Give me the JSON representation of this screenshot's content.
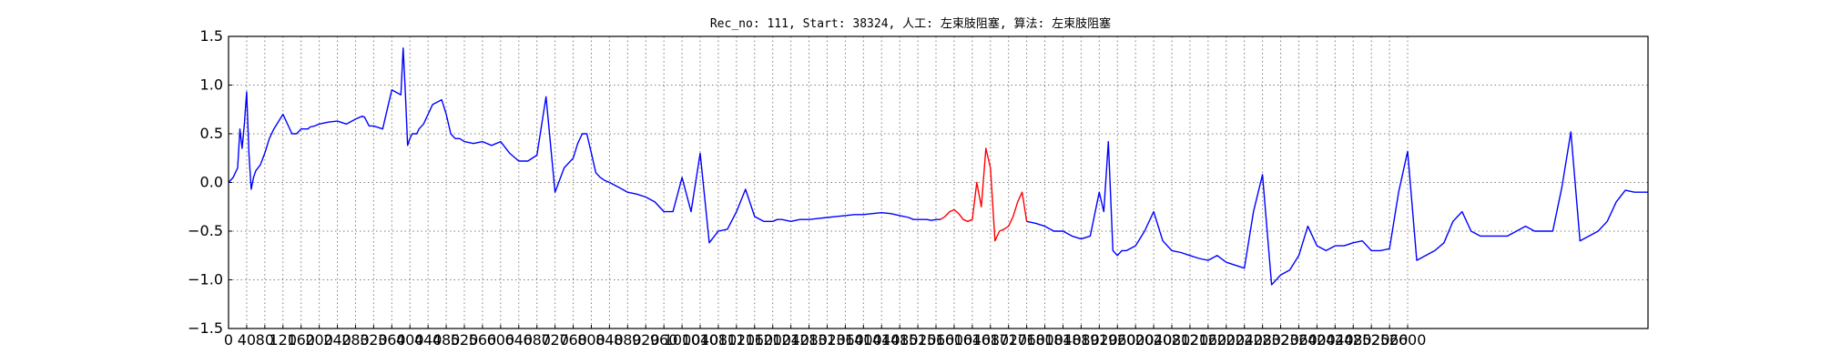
{
  "chart_data": {
    "type": "line",
    "title": "Rec_no: 111, Start: 38324, 人工: 左束肢阻塞, 算法: 左束肢阻塞",
    "xlabel": "",
    "ylabel": "",
    "xlim": [
      0,
      3130
    ],
    "ylim": [
      -1.5,
      1.5
    ],
    "grid": true,
    "x_ticks": [
      0,
      40,
      80,
      120,
      160,
      200,
      240,
      280,
      320,
      360,
      400,
      440,
      480,
      520,
      560,
      600,
      640,
      680,
      720,
      760,
      800,
      840,
      880,
      920,
      960,
      1000,
      1040,
      1080,
      1120,
      1160,
      1200,
      1240,
      1280,
      1320,
      1360,
      1400,
      1440,
      1480,
      1520,
      1560,
      1600,
      1640,
      1680,
      1720,
      1760,
      1800,
      1840,
      1880,
      1920,
      1960,
      2000,
      2040,
      2080,
      2120,
      2160,
      2200,
      2240,
      2280,
      2320,
      2360,
      2400,
      2440,
      2480,
      2520,
      2560,
      2600
    ],
    "y_ticks": [
      1.5,
      1.0,
      0.5,
      0.0,
      -0.5,
      -1.0,
      -1.5
    ],
    "y_tick_labels": [
      "1.5",
      "1.0",
      "0.5",
      "0.0",
      "−0.5",
      "−1.0",
      "−1.5"
    ],
    "series": [
      {
        "color": "#0000ff",
        "x": [
          0,
          10,
          20,
          25,
          30,
          35,
          40,
          45,
          50,
          55,
          60,
          70,
          80,
          90,
          100,
          120,
          140,
          150,
          160,
          170,
          175,
          180,
          190,
          200,
          220,
          240,
          260,
          280,
          295,
          300,
          310,
          320,
          340,
          360,
          380,
          385,
          390,
          395,
          400,
          405,
          410,
          415,
          420,
          430,
          450,
          470,
          480,
          490,
          500,
          510,
          520,
          540,
          560,
          580,
          600,
          620,
          640,
          660,
          680,
          700,
          700,
          720,
          740,
          760,
          770,
          780,
          790,
          800,
          810,
          820,
          830,
          840,
          860,
          880,
          900,
          920,
          940,
          960,
          980,
          1000,
          1020,
          1040,
          1060,
          1080,
          1100,
          1120,
          1140,
          1160,
          1180,
          1190,
          1200,
          1210,
          1220,
          1240,
          1260,
          1280,
          1300,
          1320,
          1340,
          1360,
          1380,
          1400,
          1420,
          1440,
          1460,
          1480,
          1500,
          1510,
          1520,
          1530,
          1540,
          1550,
          1560,
          1570
        ],
        "y": [
          0.0,
          0.05,
          0.15,
          0.55,
          0.35,
          0.6,
          0.93,
          0.3,
          -0.07,
          0.05,
          0.12,
          0.18,
          0.3,
          0.45,
          0.55,
          0.7,
          0.5,
          0.5,
          0.55,
          0.55,
          0.55,
          0.57,
          0.58,
          0.6,
          0.62,
          0.63,
          0.6,
          0.65,
          0.68,
          0.67,
          0.58,
          0.58,
          0.55,
          0.95,
          0.9,
          1.38,
          0.9,
          0.38,
          0.45,
          0.5,
          0.5,
          0.5,
          0.55,
          0.6,
          0.8,
          0.85,
          0.7,
          0.5,
          0.45,
          0.45,
          0.42,
          0.4,
          0.42,
          0.38,
          0.42,
          0.3,
          0.22,
          0.22,
          0.28,
          0.88,
          0.88,
          -0.1,
          0.15,
          0.25,
          0.4,
          0.5,
          0.5,
          0.3,
          0.1,
          0.05,
          0.02,
          0.0,
          -0.05,
          -0.1,
          -0.12,
          -0.15,
          -0.2,
          -0.3,
          -0.3,
          0.05,
          -0.3,
          0.3,
          -0.62,
          -0.5,
          -0.48,
          -0.3,
          -0.07,
          -0.35,
          -0.4,
          -0.4,
          -0.4,
          -0.38,
          -0.38,
          -0.4,
          -0.38,
          -0.38,
          -0.37,
          -0.36,
          -0.35,
          -0.34,
          -0.33,
          -0.33,
          -0.32,
          -0.31,
          -0.32,
          -0.34,
          -0.36,
          -0.38,
          -0.38,
          -0.38,
          -0.38,
          -0.39,
          -0.38,
          -0.38
        ]
      },
      {
        "color": "#ff0000",
        "x": [
          1570,
          1580,
          1590,
          1600,
          1610,
          1620,
          1630,
          1640,
          1650,
          1660,
          1670,
          1680,
          1690,
          1700,
          1710,
          1720,
          1730,
          1740,
          1750,
          1760
        ],
        "y": [
          -0.38,
          -0.35,
          -0.3,
          -0.28,
          -0.32,
          -0.38,
          -0.4,
          -0.38,
          0.0,
          -0.25,
          0.35,
          0.15,
          -0.6,
          -0.5,
          -0.48,
          -0.45,
          -0.35,
          -0.2,
          -0.1,
          -0.4
        ]
      },
      {
        "color": "#0000ff",
        "x": [
          1760,
          1780,
          1800,
          1820,
          1840,
          1860,
          1880,
          1900,
          1920,
          1930,
          1940,
          1950,
          1960,
          1970,
          1980,
          2000,
          2020,
          2040,
          2060,
          2080,
          2100,
          2120,
          2140,
          2160,
          2180,
          2200,
          2220,
          2240,
          2260,
          2280,
          2300,
          2320,
          2340,
          2360,
          2380,
          2400,
          2420,
          2440,
          2460,
          2480,
          2500,
          2520,
          2540,
          2560,
          2580,
          2600,
          2620,
          2640,
          2660,
          2680,
          2700,
          2720,
          2740,
          2760,
          2780,
          2800,
          2820,
          2840,
          2860,
          2880,
          2900,
          2920,
          2940,
          2960,
          2980,
          3000,
          3020,
          3040,
          3060,
          3080,
          3100,
          3120,
          3130
        ],
        "y": [
          -0.4,
          -0.42,
          -0.45,
          -0.5,
          -0.5,
          -0.55,
          -0.58,
          -0.55,
          -0.1,
          -0.3,
          0.42,
          -0.7,
          -0.75,
          -0.7,
          -0.7,
          -0.65,
          -0.5,
          -0.3,
          -0.6,
          -0.7,
          -0.72,
          -0.75,
          -0.78,
          -0.8,
          -0.75,
          -0.82,
          -0.85,
          -0.88,
          -0.3,
          0.08,
          -1.05,
          -0.95,
          -0.9,
          -0.75,
          -0.45,
          -0.65,
          -0.7,
          -0.65,
          -0.65,
          -0.62,
          -0.6,
          -0.7,
          -0.7,
          -0.68,
          -0.1,
          0.32,
          -0.8,
          -0.75,
          -0.7,
          -0.62,
          -0.4,
          -0.3,
          -0.5,
          -0.55,
          -0.55,
          -0.55,
          -0.55,
          -0.5,
          -0.45,
          -0.5,
          -0.5,
          -0.5,
          -0.05,
          0.52,
          -0.6,
          -0.55,
          -0.5,
          -0.4,
          -0.2,
          -0.08,
          -0.1,
          -0.1,
          -0.1
        ]
      }
    ]
  }
}
